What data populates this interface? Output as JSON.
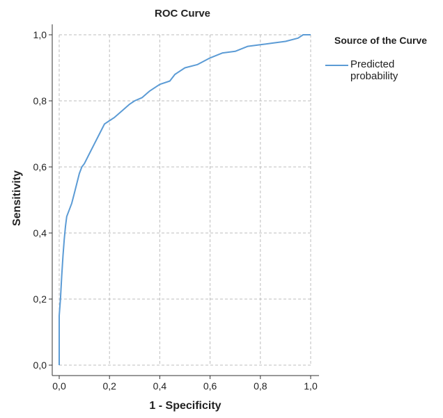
{
  "chart_data": {
    "type": "line",
    "title": "ROC Curve",
    "xlabel": "1 - Specificity",
    "ylabel": "Sensitivity",
    "xlim": [
      0,
      1
    ],
    "ylim": [
      0,
      1
    ],
    "x_ticks": [
      "0,0",
      "0,2",
      "0,4",
      "0,6",
      "0,8",
      "1,0"
    ],
    "y_ticks": [
      "0,0",
      "0,2",
      "0,4",
      "0,6",
      "0,8",
      "1,0"
    ],
    "grid": true,
    "legend": {
      "title": "Source of the Curve",
      "placement": "right",
      "entries": [
        {
          "label_lines": [
            "Predicted",
            "probability"
          ],
          "color": "#5b9bd5"
        }
      ]
    },
    "series": [
      {
        "name": "Predicted probability",
        "color": "#5b9bd5",
        "x": [
          0.0,
          0.0,
          0.005,
          0.01,
          0.015,
          0.02,
          0.025,
          0.03,
          0.04,
          0.05,
          0.06,
          0.07,
          0.08,
          0.09,
          0.1,
          0.12,
          0.14,
          0.16,
          0.18,
          0.2,
          0.22,
          0.25,
          0.28,
          0.3,
          0.33,
          0.36,
          0.4,
          0.44,
          0.46,
          0.5,
          0.55,
          0.6,
          0.65,
          0.7,
          0.75,
          0.8,
          0.85,
          0.9,
          0.95,
          0.97,
          1.0
        ],
        "y": [
          0.0,
          0.15,
          0.2,
          0.27,
          0.33,
          0.38,
          0.42,
          0.45,
          0.47,
          0.49,
          0.52,
          0.55,
          0.58,
          0.6,
          0.61,
          0.64,
          0.67,
          0.7,
          0.73,
          0.74,
          0.75,
          0.77,
          0.79,
          0.8,
          0.81,
          0.83,
          0.85,
          0.86,
          0.88,
          0.9,
          0.91,
          0.93,
          0.945,
          0.95,
          0.965,
          0.97,
          0.975,
          0.98,
          0.99,
          1.0,
          1.0
        ]
      }
    ]
  }
}
